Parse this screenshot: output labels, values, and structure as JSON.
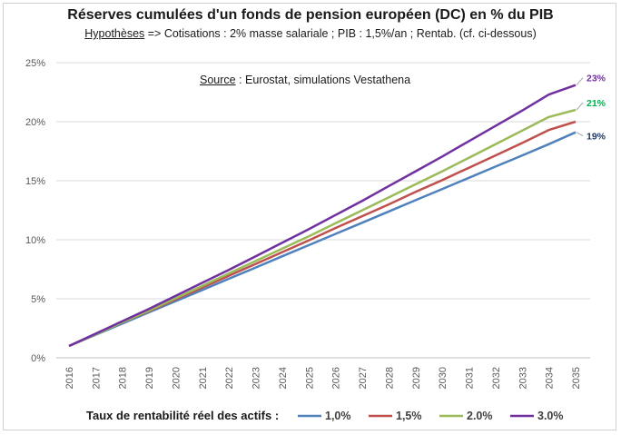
{
  "chart_data": {
    "type": "line",
    "title": "Réserves cumulées d'un fonds de pension européen (DC) en % du PIB",
    "subtitle": {
      "lead": "Hypothèses",
      "rest": " => Cotisations : 2% masse salariale ; PIB : 1,5%/an ; Rentab. (cf. ci-dessous)"
    },
    "annotation": {
      "lead": "Source",
      "rest": " : Eurostat, simulations Vestathena"
    },
    "x": [
      "2016",
      "2017",
      "2018",
      "2019",
      "2020",
      "2021",
      "2022",
      "2023",
      "2024",
      "2025",
      "2026",
      "2027",
      "2028",
      "2029",
      "2030",
      "2031",
      "2032",
      "2033",
      "2034",
      "2035"
    ],
    "ylim": [
      0,
      25
    ],
    "y_ticks": [
      "0%",
      "5%",
      "10%",
      "15%",
      "20%",
      "25%"
    ],
    "grid": true,
    "legend_title": "Taux de rentabilité réel des actifs :",
    "legend_position": "bottom",
    "series": [
      {
        "name": "1,0%",
        "color": "#4f81bd",
        "end_label": "19%",
        "end_label_color": "#1f3864",
        "values": [
          1.0,
          1.95,
          2.9,
          3.85,
          4.8,
          5.75,
          6.7,
          7.65,
          8.6,
          9.55,
          10.5,
          11.45,
          12.4,
          13.35,
          14.3,
          15.25,
          16.2,
          17.15,
          18.1,
          19.1
        ]
      },
      {
        "name": "1,5%",
        "color": "#c0504d",
        "end_label": "",
        "end_label_color": "#c0504d",
        "values": [
          1.0,
          2.0,
          3.0,
          3.95,
          4.95,
          5.95,
          6.95,
          7.95,
          8.95,
          9.95,
          11.0,
          12.0,
          13.0,
          14.05,
          15.05,
          16.1,
          17.15,
          18.2,
          19.3,
          20.0
        ]
      },
      {
        "name": "2.0%",
        "color": "#9bbb59",
        "end_label": "21%",
        "end_label_color": "#00b050",
        "values": [
          1.0,
          2.0,
          3.0,
          4.0,
          5.05,
          6.1,
          7.15,
          8.2,
          9.25,
          10.3,
          11.4,
          12.5,
          13.6,
          14.7,
          15.8,
          16.95,
          18.1,
          19.25,
          20.4,
          21.0
        ]
      },
      {
        "name": "3.0%",
        "color": "#7030a0",
        "end_label": "23%",
        "end_label_color": "#7030a0",
        "values": [
          1.0,
          2.05,
          3.1,
          4.15,
          5.25,
          6.35,
          7.45,
          8.6,
          9.75,
          10.9,
          12.1,
          13.3,
          14.55,
          15.8,
          17.05,
          18.35,
          19.65,
          20.95,
          22.3,
          23.1
        ]
      }
    ]
  }
}
